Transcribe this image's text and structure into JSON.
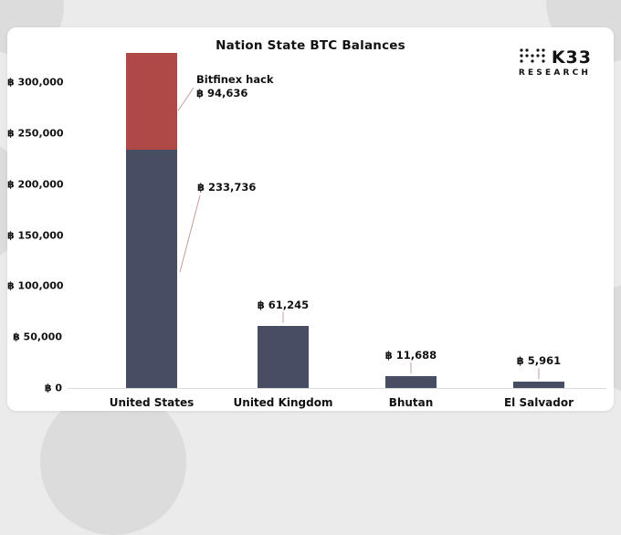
{
  "logo": {
    "name": "K33",
    "sub": "RESEARCH"
  },
  "chart_data": {
    "type": "bar",
    "stacked": true,
    "title": "Nation State BTC Balances",
    "categories": [
      "United States",
      "United Kingdom",
      "Bhutan",
      "El Salvador"
    ],
    "series": [
      {
        "name": "BTC balance",
        "color": "#474e63",
        "values": [
          233736,
          61245,
          11688,
          5961
        ]
      },
      {
        "name": "Bitfinex hack",
        "color": "#ae4947",
        "values": [
          94636,
          0,
          0,
          0
        ]
      }
    ],
    "value_labels": [
      "฿ 233,736",
      "฿ 61,245",
      "฿ 11,688",
      "฿ 5,961"
    ],
    "stack_annotation": {
      "label": "Bitfinex hack",
      "value": "฿ 94,636"
    },
    "yticks": [
      0,
      50000,
      100000,
      150000,
      200000,
      250000,
      300000
    ],
    "ytick_labels": [
      "฿ 0",
      "฿ 50,000",
      "฿ 100,000",
      "฿ 150,000",
      "฿ 200,000",
      "฿ 250,000",
      "฿ 300,000"
    ],
    "ylim": [
      0,
      330000
    ],
    "grid": false,
    "legend": "none",
    "leader_line_color": "#c79a9a",
    "axis_line_color": "#d9d9d9"
  }
}
